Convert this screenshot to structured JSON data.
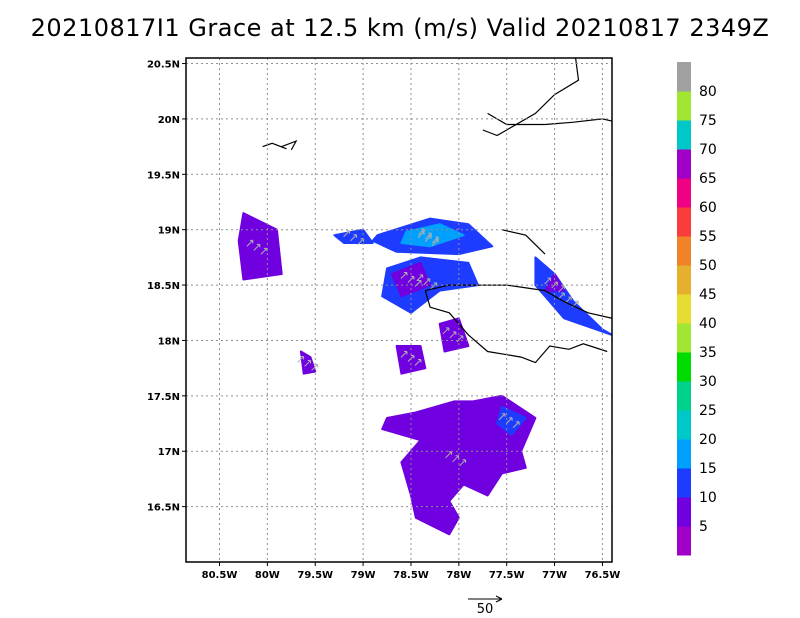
{
  "title": "20210817I1 Grace at 12.5 km (m/s) Valid 20210817 2349Z",
  "lat_labels": [
    {
      "text": "20.5N",
      "lat": 20.5
    },
    {
      "text": "20N",
      "lat": 20.0
    },
    {
      "text": "19.5N",
      "lat": 19.5
    },
    {
      "text": "19N",
      "lat": 19.0
    },
    {
      "text": "18.5N",
      "lat": 18.5
    },
    {
      "text": "18N",
      "lat": 18.0
    },
    {
      "text": "17.5N",
      "lat": 17.5
    },
    {
      "text": "17N",
      "lat": 17.0
    },
    {
      "text": "16.5N",
      "lat": 16.5
    }
  ],
  "lon_labels": [
    {
      "text": "80.5W",
      "lon": -80.5
    },
    {
      "text": "80W",
      "lon": -80.0
    },
    {
      "text": "79.5W",
      "lon": -79.5
    },
    {
      "text": "79W",
      "lon": -79.0
    },
    {
      "text": "78.5W",
      "lon": -78.5
    },
    {
      "text": "78W",
      "lon": -78.0
    },
    {
      "text": "77.5W",
      "lon": -77.5
    },
    {
      "text": "77W",
      "lon": -77.0
    },
    {
      "text": "76.5W",
      "lon": -76.5
    }
  ],
  "extent": {
    "lon_min": -80.85,
    "lon_max": -76.4,
    "lat_min": 16.0,
    "lat_max": 20.55
  },
  "colorbar": {
    "labels": [
      "5",
      "10",
      "15",
      "20",
      "25",
      "30",
      "35",
      "40",
      "45",
      "50",
      "55",
      "60",
      "65",
      "70",
      "75",
      "80"
    ],
    "colors": [
      "#a000c8",
      "#7000e0",
      "#1e3cff",
      "#00a0ff",
      "#00c8c8",
      "#00d28c",
      "#00dc00",
      "#a0e632",
      "#e6dc32",
      "#e6af2d",
      "#f08228",
      "#fa3c3c",
      "#f00082",
      "#a000c8",
      "#00c8c8",
      "#a0e632",
      "#a0a0a0"
    ]
  },
  "reference_vector": {
    "label": "50"
  },
  "wind_regions": [
    {
      "level": 1,
      "poly": [
        [
          -80.25,
          19.15
        ],
        [
          -79.9,
          19.0
        ],
        [
          -79.85,
          18.6
        ],
        [
          -80.25,
          18.55
        ],
        [
          -80.3,
          18.9
        ]
      ]
    },
    {
      "level": 2,
      "poly": [
        [
          -78.85,
          18.95
        ],
        [
          -78.3,
          19.1
        ],
        [
          -77.9,
          19.05
        ],
        [
          -77.65,
          18.85
        ],
        [
          -78.0,
          18.78
        ],
        [
          -78.65,
          18.8
        ],
        [
          -78.9,
          18.9
        ]
      ]
    },
    {
      "level": 3,
      "poly": [
        [
          -78.55,
          18.98
        ],
        [
          -78.2,
          19.05
        ],
        [
          -77.95,
          18.95
        ],
        [
          -78.3,
          18.85
        ],
        [
          -78.6,
          18.88
        ]
      ]
    },
    {
      "level": 2,
      "poly": [
        [
          -78.75,
          18.65
        ],
        [
          -78.4,
          18.75
        ],
        [
          -77.9,
          18.7
        ],
        [
          -77.8,
          18.5
        ],
        [
          -78.2,
          18.45
        ],
        [
          -78.5,
          18.25
        ],
        [
          -78.8,
          18.4
        ]
      ]
    },
    {
      "level": 1,
      "poly": [
        [
          -78.7,
          18.6
        ],
        [
          -78.4,
          18.7
        ],
        [
          -78.3,
          18.5
        ],
        [
          -78.6,
          18.4
        ]
      ]
    },
    {
      "level": 2,
      "poly": [
        [
          -77.2,
          18.75
        ],
        [
          -77.0,
          18.6
        ],
        [
          -76.8,
          18.35
        ],
        [
          -76.5,
          18.1
        ],
        [
          -76.4,
          18.05
        ],
        [
          -76.9,
          18.2
        ],
        [
          -77.2,
          18.5
        ]
      ]
    },
    {
      "level": 1,
      "poly": [
        [
          -77.0,
          18.6
        ],
        [
          -76.9,
          18.45
        ],
        [
          -77.1,
          18.45
        ]
      ]
    },
    {
      "level": 2,
      "poly": [
        [
          -79.3,
          18.95
        ],
        [
          -79.0,
          19.0
        ],
        [
          -78.9,
          18.88
        ],
        [
          -79.2,
          18.88
        ]
      ]
    },
    {
      "level": 1,
      "poly": [
        [
          -78.2,
          18.15
        ],
        [
          -78.0,
          18.2
        ],
        [
          -77.9,
          17.95
        ],
        [
          -78.15,
          17.9
        ]
      ]
    },
    {
      "level": 1,
      "poly": [
        [
          -78.65,
          17.95
        ],
        [
          -78.4,
          17.95
        ],
        [
          -78.35,
          17.75
        ],
        [
          -78.6,
          17.7
        ]
      ]
    },
    {
      "level": 1,
      "poly": [
        [
          -78.45,
          17.35
        ],
        [
          -78.05,
          17.45
        ],
        [
          -77.85,
          17.45
        ],
        [
          -77.55,
          17.5
        ],
        [
          -77.2,
          17.3
        ],
        [
          -77.35,
          17.0
        ],
        [
          -77.3,
          16.85
        ],
        [
          -77.55,
          16.8
        ],
        [
          -77.7,
          16.6
        ],
        [
          -77.95,
          16.7
        ],
        [
          -78.1,
          16.55
        ],
        [
          -78.0,
          16.4
        ],
        [
          -78.1,
          16.25
        ],
        [
          -78.45,
          16.4
        ],
        [
          -78.5,
          16.6
        ],
        [
          -78.6,
          16.9
        ],
        [
          -78.4,
          17.1
        ],
        [
          -78.8,
          17.2
        ],
        [
          -78.75,
          17.3
        ]
      ]
    },
    {
      "level": 2,
      "poly": [
        [
          -77.55,
          17.4
        ],
        [
          -77.3,
          17.3
        ],
        [
          -77.45,
          17.15
        ],
        [
          -77.6,
          17.25
        ]
      ]
    },
    {
      "level": 1,
      "poly": [
        [
          -79.65,
          17.9
        ],
        [
          -79.55,
          17.85
        ],
        [
          -79.5,
          17.72
        ],
        [
          -79.62,
          17.7
        ]
      ]
    }
  ],
  "coastlines": [
    [
      [
        -77.55,
        19.0
      ],
      [
        -77.3,
        18.95
      ],
      [
        -77.1,
        18.78
      ]
    ],
    [
      [
        -78.35,
        18.45
      ],
      [
        -78.1,
        18.5
      ],
      [
        -77.5,
        18.5
      ],
      [
        -77.1,
        18.45
      ],
      [
        -76.9,
        18.35
      ],
      [
        -76.65,
        18.25
      ],
      [
        -76.4,
        18.2
      ]
    ],
    [
      [
        -78.35,
        18.45
      ],
      [
        -78.3,
        18.3
      ],
      [
        -78.1,
        18.25
      ],
      [
        -77.9,
        18.05
      ],
      [
        -77.7,
        17.9
      ],
      [
        -77.35,
        17.85
      ],
      [
        -77.2,
        17.8
      ],
      [
        -77.05,
        17.95
      ],
      [
        -76.85,
        17.92
      ],
      [
        -76.7,
        17.97
      ],
      [
        -76.45,
        17.9
      ]
    ],
    [
      [
        -77.7,
        20.05
      ],
      [
        -77.5,
        19.95
      ],
      [
        -77.1,
        19.95
      ],
      [
        -76.8,
        19.97
      ],
      [
        -76.5,
        20.0
      ],
      [
        -76.4,
        19.98
      ]
    ],
    [
      [
        -76.78,
        20.55
      ],
      [
        -76.75,
        20.35
      ],
      [
        -77.0,
        20.22
      ],
      [
        -77.2,
        20.05
      ],
      [
        -77.6,
        19.85
      ],
      [
        -77.75,
        19.9
      ]
    ],
    [
      [
        -80.05,
        19.75
      ],
      [
        -79.95,
        19.78
      ],
      [
        -79.8,
        19.73
      ]
    ],
    [
      [
        -79.85,
        19.75
      ],
      [
        -79.7,
        19.8
      ],
      [
        -79.75,
        19.72
      ]
    ]
  ]
}
